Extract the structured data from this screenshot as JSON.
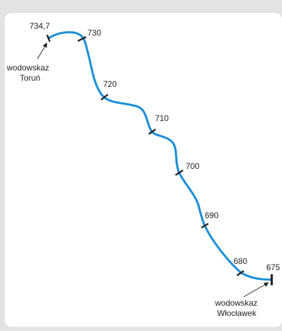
{
  "map": {
    "river_color": "#1e90d6",
    "tick_color": "#222222",
    "km_markers": [
      {
        "label": "734,7"
      },
      {
        "label": "730"
      },
      {
        "label": "720"
      },
      {
        "label": "710"
      },
      {
        "label": "700"
      },
      {
        "label": "690"
      },
      {
        "label": "680"
      },
      {
        "label": "675"
      }
    ],
    "gauges": {
      "torun": {
        "line1": "wodowskaz",
        "line2": "Toruń"
      },
      "wloclawek": {
        "line1": "wodowskaz",
        "line2": "Włocławek"
      }
    }
  }
}
